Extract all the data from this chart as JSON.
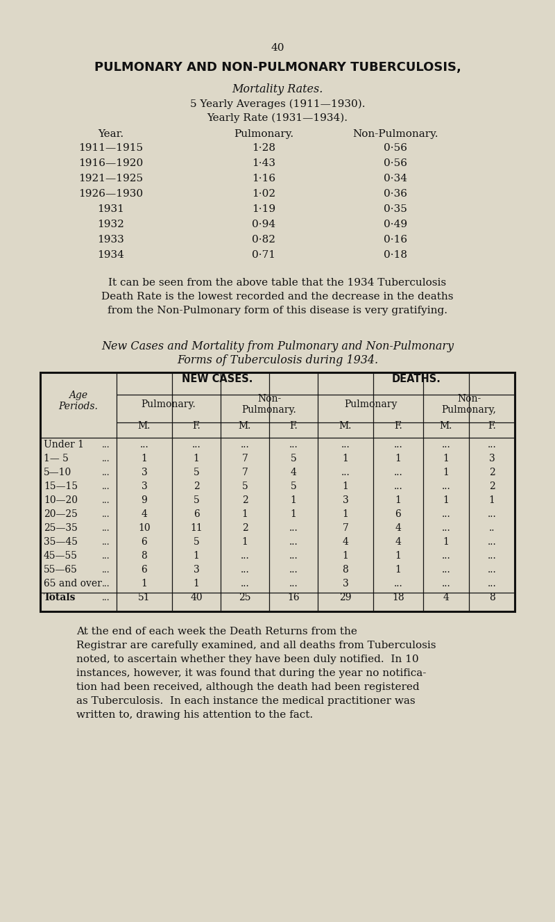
{
  "bg_color": "#ddd8c8",
  "page_number": "40",
  "title": "PULMONARY AND NON-PULMONARY TUBERCULOSIS,",
  "subtitle1": "Mortality Rates.",
  "subtitle2": "5 Yearly Averages (1911—1930).",
  "subtitle3": "Yearly Rate (1931—1934).",
  "col_headers": [
    "Year.",
    "Pulmonary.",
    "Non-Pulmonary."
  ],
  "mortality_data": [
    [
      "1911—1915",
      "1·28",
      "0·56"
    ],
    [
      "1916—1920",
      "1·43",
      "0·56"
    ],
    [
      "1921—1925",
      "1·16",
      "0·34"
    ],
    [
      "1926—1930",
      "1·02",
      "0·36"
    ],
    [
      "1931",
      "1·19",
      "0·35"
    ],
    [
      "1932",
      "0·94",
      "0·49"
    ],
    [
      "1933",
      "0·82",
      "0·16"
    ],
    [
      "1934",
      "0·71",
      "0·18"
    ]
  ],
  "paragraph1_bold_word": "1934",
  "paragraph1": "It can be seen from the above table that the 1934 Tuberculosis\nDeath Rate is the lowest recorded and the decrease in the deaths\nfrom the Non-Pulmonary form of this disease is very gratifying.",
  "table2_title1": "New Cases and Mortality from Pulmonary and Non-Pulmonary",
  "table2_title2": "Forms of Tuberculosis during 1934.",
  "age_periods": [
    "Under 1",
    "1— 5",
    "5—10",
    "15—15",
    "10—20",
    "20—25",
    "25—35",
    "35—45",
    "45—55",
    "55—65",
    "65 and over",
    "Totals"
  ],
  "new_cases_pulm_M": [
    "...",
    "1",
    "3",
    "3",
    "9",
    "4",
    "10",
    "6",
    "8",
    "6",
    "1",
    "51"
  ],
  "new_cases_pulm_F": [
    "...",
    "1",
    "5",
    "2",
    "5",
    "6",
    "11",
    "5",
    "1",
    "3",
    "1",
    "40"
  ],
  "new_cases_nonp_M": [
    "...",
    "7",
    "7",
    "5",
    "2",
    "1",
    "2",
    "1",
    "...",
    "...",
    "...",
    "25"
  ],
  "new_cases_nonp_F": [
    "...",
    "5",
    "4",
    "5",
    "1",
    "1",
    "...",
    "...",
    "...",
    "...",
    "...",
    "16"
  ],
  "deaths_pulm_M": [
    "...",
    "1",
    "...",
    "1",
    "3",
    "1",
    "7",
    "4",
    "1",
    "8",
    "3",
    "29"
  ],
  "deaths_pulm_F": [
    "...",
    "1",
    "...",
    "...",
    "1",
    "6",
    "4",
    "4",
    "1",
    "1",
    "...",
    "18"
  ],
  "deaths_nonp_M": [
    "...",
    "1",
    "1",
    "...",
    "1",
    "...",
    "...",
    "1",
    "...",
    "...",
    "...",
    "4"
  ],
  "deaths_nonp_F": [
    "...",
    "3",
    "2",
    "2",
    "1",
    "...",
    "..",
    "...",
    "...",
    "...",
    "...",
    "8"
  ],
  "paragraph2": "At the end of each week the Death Returns from the\nRegistrar are carefully examined, and all deaths from Tuberculosis\nnoted, to ascertain whether they have been duly notified.  In 10\ninstances, however, it was found that during the year no notifica-\ntion had been received, although the death had been registered\nas Tuberculosis.  In each instance the medical practitioner was\nwritten to, drawing his attention to the fact."
}
